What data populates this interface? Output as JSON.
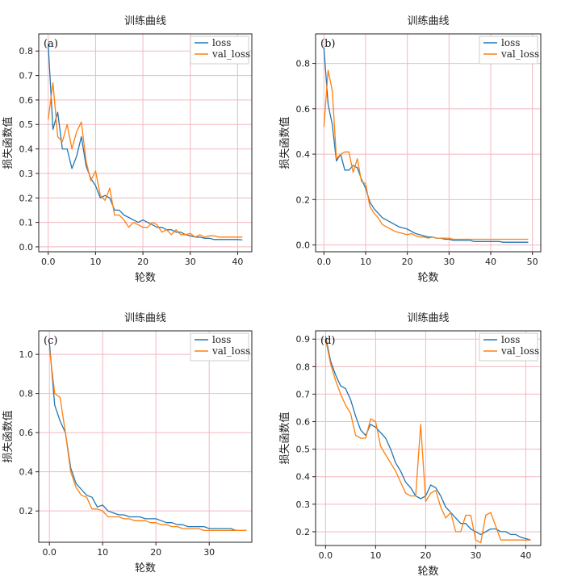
{
  "chart_data": [
    {
      "type": "line",
      "panel_label": "(a)",
      "title": "训练曲线",
      "xlabel": "轮数",
      "ylabel": "损失函数值",
      "xlim": [
        -2,
        43
      ],
      "ylim": [
        -0.02,
        0.87
      ],
      "xticks": [
        0,
        10,
        20,
        30,
        40
      ],
      "yticks": [
        0.0,
        0.1,
        0.2,
        0.3,
        0.4,
        0.5,
        0.6,
        0.7,
        0.8
      ],
      "grid": true,
      "legend_position": "top-right",
      "series": [
        {
          "name": "loss",
          "color": "#1f77b4",
          "x": [
            0,
            1,
            2,
            3,
            4,
            5,
            6,
            7,
            8,
            9,
            10,
            11,
            12,
            13,
            14,
            15,
            16,
            17,
            18,
            19,
            20,
            21,
            22,
            23,
            24,
            25,
            26,
            27,
            28,
            29,
            30,
            31,
            32,
            33,
            34,
            35,
            36,
            37,
            38,
            39,
            40,
            41
          ],
          "y": [
            0.83,
            0.48,
            0.55,
            0.4,
            0.4,
            0.32,
            0.37,
            0.45,
            0.33,
            0.28,
            0.25,
            0.2,
            0.21,
            0.2,
            0.15,
            0.15,
            0.13,
            0.12,
            0.11,
            0.1,
            0.11,
            0.1,
            0.09,
            0.08,
            0.08,
            0.07,
            0.07,
            0.06,
            0.06,
            0.05,
            0.045,
            0.04,
            0.04,
            0.035,
            0.035,
            0.03,
            0.03,
            0.03,
            0.03,
            0.03,
            0.03,
            0.028
          ]
        },
        {
          "name": "val_loss",
          "color": "#ff7f0e",
          "x": [
            0,
            1,
            2,
            3,
            4,
            5,
            6,
            7,
            8,
            9,
            10,
            11,
            12,
            13,
            14,
            15,
            16,
            17,
            18,
            19,
            20,
            21,
            22,
            23,
            24,
            25,
            26,
            27,
            28,
            29,
            30,
            31,
            32,
            33,
            34,
            35,
            36,
            37,
            38,
            39,
            40,
            41
          ],
          "y": [
            0.52,
            0.67,
            0.45,
            0.43,
            0.5,
            0.4,
            0.47,
            0.51,
            0.35,
            0.27,
            0.31,
            0.21,
            0.19,
            0.24,
            0.13,
            0.13,
            0.11,
            0.08,
            0.1,
            0.09,
            0.08,
            0.08,
            0.1,
            0.09,
            0.06,
            0.07,
            0.05,
            0.07,
            0.05,
            0.05,
            0.055,
            0.04,
            0.05,
            0.04,
            0.045,
            0.045,
            0.04,
            0.04,
            0.04,
            0.04,
            0.04,
            0.04
          ]
        }
      ]
    },
    {
      "type": "line",
      "panel_label": "(b)",
      "title": "训练曲线",
      "xlabel": "轮数",
      "ylabel": "损失函数值",
      "xlim": [
        -2,
        52
      ],
      "ylim": [
        -0.03,
        0.93
      ],
      "xticks": [
        0,
        10,
        20,
        30,
        40,
        50
      ],
      "yticks": [
        0.0,
        0.2,
        0.4,
        0.6,
        0.8
      ],
      "grid": true,
      "legend_position": "top-right",
      "series": [
        {
          "name": "loss",
          "color": "#1f77b4",
          "x": [
            0,
            1,
            2,
            3,
            4,
            5,
            6,
            7,
            8,
            9,
            10,
            11,
            12,
            13,
            14,
            15,
            16,
            17,
            18,
            19,
            20,
            21,
            22,
            23,
            24,
            25,
            26,
            27,
            28,
            29,
            30,
            31,
            32,
            33,
            34,
            35,
            36,
            37,
            38,
            39,
            40,
            41,
            42,
            43,
            44,
            45,
            46,
            47,
            48,
            49
          ],
          "y": [
            0.87,
            0.62,
            0.53,
            0.37,
            0.4,
            0.33,
            0.33,
            0.35,
            0.34,
            0.29,
            0.25,
            0.19,
            0.16,
            0.14,
            0.12,
            0.11,
            0.1,
            0.09,
            0.08,
            0.075,
            0.07,
            0.06,
            0.05,
            0.045,
            0.04,
            0.035,
            0.035,
            0.03,
            0.03,
            0.025,
            0.025,
            0.02,
            0.02,
            0.02,
            0.02,
            0.02,
            0.015,
            0.015,
            0.015,
            0.015,
            0.015,
            0.015,
            0.015,
            0.012,
            0.012,
            0.012,
            0.012,
            0.012,
            0.012,
            0.012
          ]
        },
        {
          "name": "val_loss",
          "color": "#ff7f0e",
          "x": [
            0,
            1,
            2,
            3,
            4,
            5,
            6,
            7,
            8,
            9,
            10,
            11,
            12,
            13,
            14,
            15,
            16,
            17,
            18,
            19,
            20,
            21,
            22,
            23,
            24,
            25,
            26,
            27,
            28,
            29,
            30,
            31,
            32,
            33,
            34,
            35,
            36,
            37,
            38,
            39,
            40,
            41,
            42,
            43,
            44,
            45,
            46,
            47,
            48,
            49
          ],
          "y": [
            0.52,
            0.77,
            0.68,
            0.38,
            0.4,
            0.41,
            0.41,
            0.32,
            0.38,
            0.28,
            0.27,
            0.17,
            0.14,
            0.12,
            0.09,
            0.08,
            0.07,
            0.06,
            0.055,
            0.05,
            0.045,
            0.05,
            0.04,
            0.035,
            0.035,
            0.03,
            0.035,
            0.03,
            0.03,
            0.03,
            0.03,
            0.025,
            0.025,
            0.025,
            0.025,
            0.025,
            0.025,
            0.025,
            0.025,
            0.025,
            0.025,
            0.025,
            0.025,
            0.025,
            0.025,
            0.025,
            0.025,
            0.025,
            0.025,
            0.025
          ]
        }
      ]
    },
    {
      "type": "line",
      "panel_label": "(c)",
      "title": "训练曲线",
      "xlabel": "轮数",
      "ylabel": "损失函数值",
      "xlim": [
        -2,
        38
      ],
      "ylim": [
        0.04,
        1.12
      ],
      "xticks": [
        0,
        10,
        20,
        30
      ],
      "yticks": [
        0.2,
        0.4,
        0.6,
        0.8,
        1.0
      ],
      "grid": true,
      "legend_position": "top-right",
      "series": [
        {
          "name": "loss",
          "color": "#1f77b4",
          "x": [
            0,
            1,
            2,
            3,
            4,
            5,
            6,
            7,
            8,
            9,
            10,
            11,
            12,
            13,
            14,
            15,
            16,
            17,
            18,
            19,
            20,
            21,
            22,
            23,
            24,
            25,
            26,
            27,
            28,
            29,
            30,
            31,
            32,
            33,
            34,
            35,
            36,
            37
          ],
          "y": [
            1.06,
            0.74,
            0.66,
            0.6,
            0.42,
            0.34,
            0.31,
            0.28,
            0.27,
            0.22,
            0.23,
            0.2,
            0.19,
            0.18,
            0.18,
            0.17,
            0.17,
            0.17,
            0.16,
            0.16,
            0.16,
            0.15,
            0.14,
            0.14,
            0.13,
            0.13,
            0.12,
            0.12,
            0.12,
            0.12,
            0.11,
            0.11,
            0.11,
            0.11,
            0.11,
            0.1,
            0.1,
            0.1
          ]
        },
        {
          "name": "val_loss",
          "color": "#ff7f0e",
          "x": [
            0,
            1,
            2,
            3,
            4,
            5,
            6,
            7,
            8,
            9,
            10,
            11,
            12,
            13,
            14,
            15,
            16,
            17,
            18,
            19,
            20,
            21,
            22,
            23,
            24,
            25,
            26,
            27,
            28,
            29,
            30,
            31,
            32,
            33,
            34,
            35,
            36,
            37
          ],
          "y": [
            1.03,
            0.8,
            0.78,
            0.6,
            0.4,
            0.32,
            0.28,
            0.27,
            0.21,
            0.21,
            0.2,
            0.17,
            0.17,
            0.17,
            0.16,
            0.16,
            0.15,
            0.15,
            0.15,
            0.14,
            0.14,
            0.13,
            0.13,
            0.12,
            0.12,
            0.11,
            0.11,
            0.11,
            0.11,
            0.1,
            0.1,
            0.1,
            0.1,
            0.1,
            0.1,
            0.1,
            0.1,
            0.1
          ]
        }
      ]
    },
    {
      "type": "line",
      "panel_label": "(d)",
      "title": "训练曲线",
      "xlabel": "轮数",
      "ylabel": "损失函数值",
      "xlim": [
        -2,
        43
      ],
      "ylim": [
        0.15,
        0.93
      ],
      "xticks": [
        0,
        10,
        20,
        30,
        40
      ],
      "yticks": [
        0.2,
        0.3,
        0.4,
        0.5,
        0.6,
        0.7,
        0.8,
        0.9
      ],
      "grid": true,
      "legend_position": "top-right",
      "series": [
        {
          "name": "loss",
          "color": "#1f77b4",
          "x": [
            0,
            1,
            2,
            3,
            4,
            5,
            6,
            7,
            8,
            9,
            10,
            11,
            12,
            13,
            14,
            15,
            16,
            17,
            18,
            19,
            20,
            21,
            22,
            23,
            24,
            25,
            26,
            27,
            28,
            29,
            30,
            31,
            32,
            33,
            34,
            35,
            36,
            37,
            38,
            39,
            40,
            41
          ],
          "y": [
            0.91,
            0.82,
            0.77,
            0.73,
            0.72,
            0.68,
            0.62,
            0.57,
            0.55,
            0.59,
            0.58,
            0.56,
            0.54,
            0.5,
            0.45,
            0.42,
            0.38,
            0.36,
            0.33,
            0.32,
            0.33,
            0.37,
            0.36,
            0.33,
            0.29,
            0.27,
            0.25,
            0.23,
            0.23,
            0.21,
            0.2,
            0.19,
            0.2,
            0.21,
            0.21,
            0.2,
            0.2,
            0.19,
            0.19,
            0.18,
            0.175,
            0.17
          ]
        },
        {
          "name": "val_loss",
          "color": "#ff7f0e",
          "x": [
            0,
            1,
            2,
            3,
            4,
            5,
            6,
            7,
            8,
            9,
            10,
            11,
            12,
            13,
            14,
            15,
            16,
            17,
            18,
            19,
            20,
            21,
            22,
            23,
            24,
            25,
            26,
            27,
            28,
            29,
            30,
            31,
            32,
            33,
            34,
            35,
            36,
            37,
            38,
            39,
            40,
            41
          ],
          "y": [
            0.9,
            0.81,
            0.75,
            0.7,
            0.66,
            0.63,
            0.55,
            0.54,
            0.54,
            0.61,
            0.6,
            0.51,
            0.48,
            0.45,
            0.42,
            0.38,
            0.34,
            0.33,
            0.33,
            0.59,
            0.31,
            0.34,
            0.35,
            0.29,
            0.25,
            0.27,
            0.2,
            0.2,
            0.26,
            0.26,
            0.17,
            0.16,
            0.26,
            0.27,
            0.22,
            0.17,
            0.17,
            0.17,
            0.17,
            0.17,
            0.17,
            0.17
          ]
        }
      ]
    }
  ]
}
